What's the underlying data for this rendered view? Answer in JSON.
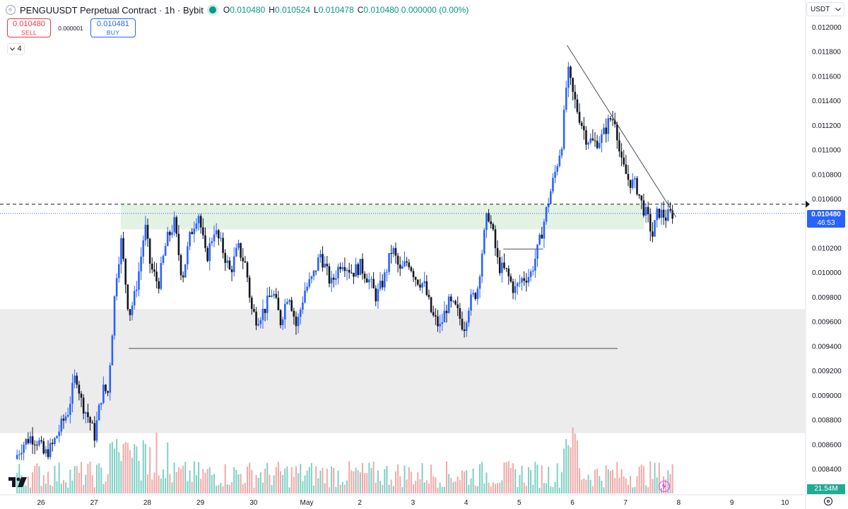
{
  "header": {
    "title": "PENGUUSDT Perpetual Contract · 1h · Bybit",
    "ohlc": [
      {
        "k": "O",
        "v": "0.010480"
      },
      {
        "k": "H",
        "v": "0.010524"
      },
      {
        "k": "L",
        "v": "0.010478"
      },
      {
        "k": "C",
        "v": "0.010480 0.000000 (0.00%)"
      }
    ]
  },
  "trade": {
    "sell_price": "0.010480",
    "sell_label": "SELL",
    "spread": "0.000001",
    "buy_price": "0.010481",
    "buy_label": "BUY"
  },
  "indicators_collapsed_count": "4",
  "currency_selector": "USDT",
  "last_price_tag": {
    "price": "0.010480",
    "countdown": "46:53"
  },
  "volume_tag": "21.54M",
  "colors": {
    "up": "#2962ff",
    "down": "#131722",
    "vol_up": "#7fd0c4",
    "vol_down": "#f2a8a8",
    "accent": "#2962ff"
  },
  "chart_data": {
    "type": "candlestick",
    "title": "PENGUUSDT Perpetual Contract · 1h · Bybit",
    "y_tick_labels": [
      "0.012000",
      "0.011800",
      "0.011600",
      "0.011400",
      "0.011200",
      "0.011000",
      "0.010800",
      "0.010600",
      "0.010400",
      "0.010200",
      "0.010000",
      "0.009800",
      "0.009600",
      "0.009400",
      "0.009200",
      "0.009000",
      "0.008800",
      "0.008600",
      "0.008400"
    ],
    "ylim": [
      0.00827,
      0.0122
    ],
    "x_tick_labels": [
      "26",
      "27",
      "28",
      "29",
      "30",
      "May",
      "2",
      "3",
      "4",
      "5",
      "6",
      "7",
      "8",
      "9",
      "10"
    ],
    "x_days": [
      26,
      27,
      28,
      29,
      30,
      31,
      32,
      33,
      34,
      35,
      36,
      37,
      38,
      39,
      40
    ],
    "current_price": 0.01048,
    "zones": [
      {
        "name": "resistance-zone",
        "y_from": 0.01035,
        "y_to": 0.01055,
        "x_from": 27.5,
        "x_to": 37.35,
        "color": "#e3f2e3"
      },
      {
        "name": "demand-zone",
        "y_from": 0.00869,
        "y_to": 0.0097,
        "x_from": 25.2,
        "x_to": 40.6,
        "color": "#ececec"
      }
    ],
    "lines": [
      {
        "name": "support-line",
        "x1": 27.65,
        "y1": 0.00938,
        "x2": 36.85,
        "y2": 0.00938
      },
      {
        "name": "breakout-line",
        "x1": 34.7,
        "y1": 0.01019,
        "x2": 35.45,
        "y2": 0.01019
      },
      {
        "name": "downtrend-line",
        "x1": 35.9,
        "y1": 0.01185,
        "x2": 37.95,
        "y2": 0.01045
      }
    ],
    "price_path": [
      [
        25.55,
        0.00848
      ],
      [
        25.7,
        0.0086
      ],
      [
        25.85,
        0.00866
      ],
      [
        26.0,
        0.00862
      ],
      [
        26.1,
        0.00851
      ],
      [
        26.25,
        0.00858
      ],
      [
        26.4,
        0.00873
      ],
      [
        26.55,
        0.00887
      ],
      [
        26.7,
        0.00918
      ],
      [
        26.8,
        0.00895
      ],
      [
        26.95,
        0.0088
      ],
      [
        27.05,
        0.00867
      ],
      [
        27.2,
        0.00905
      ],
      [
        27.3,
        0.00902
      ],
      [
        27.4,
        0.00963
      ],
      [
        27.45,
        0.00995
      ],
      [
        27.55,
        0.01025
      ],
      [
        27.65,
        0.00985
      ],
      [
        27.7,
        0.00965
      ],
      [
        27.8,
        0.0098
      ],
      [
        27.9,
        0.01005
      ],
      [
        28.0,
        0.01038
      ],
      [
        28.1,
        0.01005
      ],
      [
        28.25,
        0.0099
      ],
      [
        28.4,
        0.01025
      ],
      [
        28.55,
        0.0104
      ],
      [
        28.7,
        0.00995
      ],
      [
        28.85,
        0.0103
      ],
      [
        29.0,
        0.0105
      ],
      [
        29.15,
        0.0101
      ],
      [
        29.3,
        0.01035
      ],
      [
        29.45,
        0.0102
      ],
      [
        29.6,
        0.01
      ],
      [
        29.75,
        0.0102
      ],
      [
        29.9,
        0.01005
      ],
      [
        30.0,
        0.0097
      ],
      [
        30.1,
        0.00962
      ],
      [
        30.25,
        0.0097
      ],
      [
        30.4,
        0.00985
      ],
      [
        30.55,
        0.0096
      ],
      [
        30.7,
        0.00985
      ],
      [
        30.85,
        0.00955
      ],
      [
        31.0,
        0.00985
      ],
      [
        31.15,
        0.00995
      ],
      [
        31.3,
        0.01015
      ],
      [
        31.5,
        0.0099
      ],
      [
        31.7,
        0.0101
      ],
      [
        31.9,
        0.01
      ],
      [
        32.05,
        0.01005
      ],
      [
        32.2,
        0.00995
      ],
      [
        32.35,
        0.0098
      ],
      [
        32.5,
        0.00995
      ],
      [
        32.65,
        0.0102
      ],
      [
        32.8,
        0.01
      ],
      [
        32.95,
        0.0101
      ],
      [
        33.1,
        0.00995
      ],
      [
        33.25,
        0.0099
      ],
      [
        33.4,
        0.00965
      ],
      [
        33.55,
        0.00955
      ],
      [
        33.7,
        0.00975
      ],
      [
        33.85,
        0.0097
      ],
      [
        34.0,
        0.00955
      ],
      [
        34.1,
        0.00975
      ],
      [
        34.25,
        0.00985
      ],
      [
        34.35,
        0.0102
      ],
      [
        34.45,
        0.0105
      ],
      [
        34.55,
        0.0103
      ],
      [
        34.65,
        0.01005
      ],
      [
        34.8,
        0.01
      ],
      [
        34.95,
        0.00985
      ],
      [
        35.1,
        0.00995
      ],
      [
        35.25,
        0.00998
      ],
      [
        35.4,
        0.0102
      ],
      [
        35.5,
        0.0104
      ],
      [
        35.6,
        0.0106
      ],
      [
        35.72,
        0.01082
      ],
      [
        35.85,
        0.01108
      ],
      [
        35.95,
        0.01165
      ],
      [
        36.05,
        0.01145
      ],
      [
        36.15,
        0.0113
      ],
      [
        36.3,
        0.0111
      ],
      [
        36.45,
        0.01105
      ],
      [
        36.6,
        0.0111
      ],
      [
        36.75,
        0.01125
      ],
      [
        36.85,
        0.01125
      ],
      [
        36.95,
        0.0109
      ],
      [
        37.1,
        0.01075
      ],
      [
        37.25,
        0.0107
      ],
      [
        37.35,
        0.01055
      ],
      [
        37.45,
        0.01045
      ],
      [
        37.55,
        0.0103
      ],
      [
        37.65,
        0.0105
      ],
      [
        37.8,
        0.01045
      ],
      [
        37.9,
        0.01048
      ]
    ]
  }
}
